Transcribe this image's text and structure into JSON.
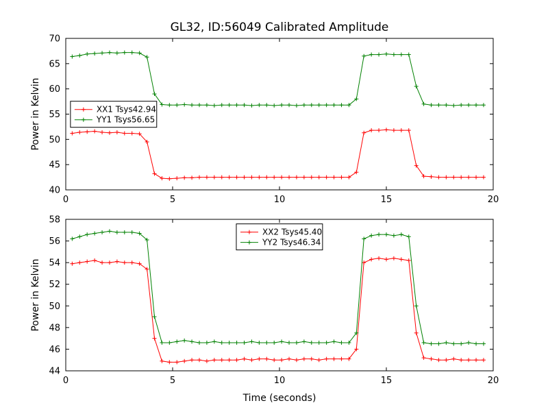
{
  "figure": {
    "background": "#ffffff",
    "frame_color": "#000000"
  },
  "chart_data": [
    {
      "type": "line",
      "title": "GL32, ID:56049 Calibrated Amplitude",
      "xlabel": "",
      "ylabel": "Power in Kelvin",
      "xlim": [
        0,
        20
      ],
      "ylim": [
        40,
        70
      ],
      "xticks": [
        0,
        5,
        10,
        15,
        20
      ],
      "yticks": [
        40,
        45,
        50,
        55,
        60,
        65,
        70
      ],
      "grid": false,
      "legend": {
        "x": 0.011,
        "y": 0.415
      },
      "x": [
        0.3,
        0.65,
        1.0,
        1.35,
        1.7,
        2.05,
        2.4,
        2.75,
        3.1,
        3.45,
        3.8,
        4.15,
        4.5,
        4.85,
        5.2,
        5.55,
        5.9,
        6.25,
        6.6,
        6.95,
        7.3,
        7.65,
        8.0,
        8.35,
        8.7,
        9.05,
        9.4,
        9.75,
        10.1,
        10.45,
        10.8,
        11.15,
        11.5,
        11.85,
        12.2,
        12.55,
        12.9,
        13.25,
        13.6,
        13.95,
        14.3,
        14.65,
        15.0,
        15.35,
        15.7,
        16.05,
        16.4,
        16.75,
        17.1,
        17.45,
        17.8,
        18.15,
        18.5,
        18.85,
        19.2,
        19.55
      ],
      "series": [
        {
          "name": "XX1 Tsys42.94",
          "color": "#ff0000",
          "marker": "+",
          "y": [
            51.2,
            51.4,
            51.5,
            51.6,
            51.4,
            51.3,
            51.4,
            51.2,
            51.2,
            51.1,
            49.5,
            43.2,
            42.3,
            42.2,
            42.3,
            42.4,
            42.4,
            42.5,
            42.5,
            42.5,
            42.5,
            42.5,
            42.5,
            42.5,
            42.5,
            42.5,
            42.5,
            42.5,
            42.5,
            42.5,
            42.5,
            42.5,
            42.5,
            42.5,
            42.5,
            42.5,
            42.5,
            42.5,
            43.5,
            51.3,
            51.8,
            51.8,
            51.9,
            51.8,
            51.8,
            51.8,
            44.8,
            42.7,
            42.6,
            42.5,
            42.5,
            42.5,
            42.5,
            42.5,
            42.5,
            42.5
          ]
        },
        {
          "name": "YY1 Tsys56.65",
          "color": "#008000",
          "marker": "+",
          "y": [
            66.4,
            66.6,
            66.9,
            67.0,
            67.1,
            67.2,
            67.1,
            67.2,
            67.2,
            67.1,
            66.3,
            59.0,
            56.9,
            56.8,
            56.8,
            56.9,
            56.8,
            56.8,
            56.8,
            56.7,
            56.8,
            56.8,
            56.8,
            56.8,
            56.7,
            56.8,
            56.8,
            56.7,
            56.8,
            56.8,
            56.7,
            56.8,
            56.8,
            56.8,
            56.8,
            56.8,
            56.8,
            56.8,
            58.0,
            66.5,
            66.8,
            66.8,
            66.9,
            66.8,
            66.8,
            66.8,
            60.5,
            57.0,
            56.8,
            56.8,
            56.8,
            56.7,
            56.8,
            56.8,
            56.8,
            56.8
          ]
        }
      ]
    },
    {
      "type": "line",
      "title": "",
      "xlabel": "Time (seconds)",
      "ylabel": "Power in Kelvin",
      "xlim": [
        0,
        20
      ],
      "ylim": [
        44,
        58
      ],
      "xticks": [
        0,
        5,
        10,
        15,
        20
      ],
      "yticks": [
        44,
        46,
        48,
        50,
        52,
        54,
        56,
        58
      ],
      "grid": false,
      "legend": {
        "x": 0.399,
        "y": 0.03
      },
      "x": [
        0.3,
        0.65,
        1.0,
        1.35,
        1.7,
        2.05,
        2.4,
        2.75,
        3.1,
        3.45,
        3.8,
        4.15,
        4.5,
        4.85,
        5.2,
        5.55,
        5.9,
        6.25,
        6.6,
        6.95,
        7.3,
        7.65,
        8.0,
        8.35,
        8.7,
        9.05,
        9.4,
        9.75,
        10.1,
        10.45,
        10.8,
        11.15,
        11.5,
        11.85,
        12.2,
        12.55,
        12.9,
        13.25,
        13.6,
        13.95,
        14.3,
        14.65,
        15.0,
        15.35,
        15.7,
        16.05,
        16.4,
        16.75,
        17.1,
        17.45,
        17.8,
        18.15,
        18.5,
        18.85,
        19.2,
        19.55
      ],
      "series": [
        {
          "name": "XX2 Tsys45.40",
          "color": "#ff0000",
          "marker": "+",
          "y": [
            53.9,
            54.0,
            54.1,
            54.2,
            54.0,
            54.0,
            54.1,
            54.0,
            54.0,
            53.9,
            53.4,
            47.0,
            44.9,
            44.8,
            44.8,
            44.9,
            45.0,
            45.0,
            44.9,
            45.0,
            45.0,
            45.0,
            45.0,
            45.1,
            45.0,
            45.1,
            45.1,
            45.0,
            45.0,
            45.1,
            45.0,
            45.1,
            45.1,
            45.0,
            45.1,
            45.1,
            45.1,
            45.1,
            46.0,
            54.0,
            54.3,
            54.4,
            54.3,
            54.4,
            54.3,
            54.2,
            47.5,
            45.2,
            45.1,
            45.0,
            45.0,
            45.1,
            45.0,
            45.0,
            45.0,
            45.0
          ]
        },
        {
          "name": "YY2 Tsys46.34",
          "color": "#008000",
          "marker": "+",
          "y": [
            56.2,
            56.4,
            56.6,
            56.7,
            56.8,
            56.9,
            56.8,
            56.8,
            56.8,
            56.7,
            56.1,
            49.0,
            46.6,
            46.6,
            46.7,
            46.8,
            46.7,
            46.6,
            46.6,
            46.7,
            46.6,
            46.6,
            46.6,
            46.6,
            46.7,
            46.6,
            46.6,
            46.6,
            46.7,
            46.6,
            46.6,
            46.7,
            46.6,
            46.6,
            46.6,
            46.7,
            46.6,
            46.6,
            47.5,
            56.2,
            56.5,
            56.6,
            56.6,
            56.5,
            56.6,
            56.4,
            50.0,
            46.6,
            46.5,
            46.5,
            46.6,
            46.5,
            46.5,
            46.6,
            46.5,
            46.5
          ]
        }
      ]
    }
  ]
}
